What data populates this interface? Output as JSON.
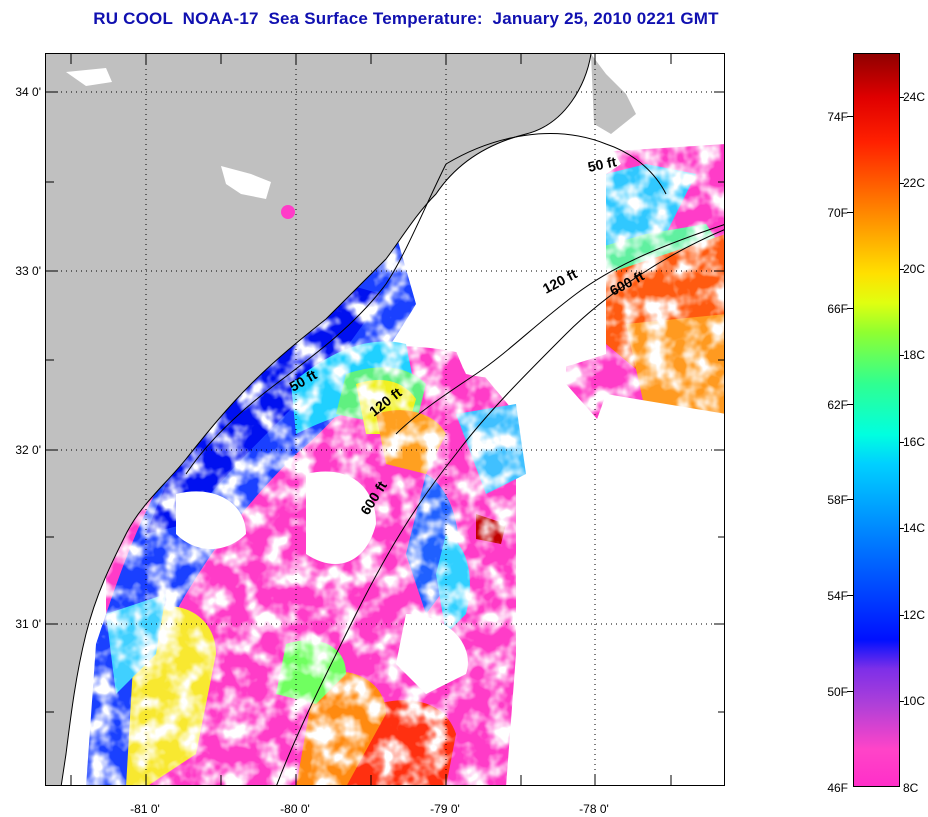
{
  "title": "RU COOL  NOAA-17  Sea Surface Temperature:  January 25, 2010 0221 GMT",
  "map": {
    "latitude_labels": [
      "34 0'",
      "33 0'",
      "32 0'",
      "31 0'"
    ],
    "longitude_labels": [
      "-81 0'",
      "-80 0'",
      "-79 0'",
      "-78 0'"
    ],
    "isobath_labels": [
      "50 ft",
      "120 ft",
      "600 ft",
      "50 ft",
      "120 ft",
      "600 ft"
    ],
    "land_color": "#c0c0c0",
    "cloud_color": "#ffffff"
  },
  "colorbar": {
    "fahrenheit_labels": [
      "74F",
      "70F",
      "66F",
      "62F",
      "58F",
      "54F",
      "50F",
      "46F"
    ],
    "celsius_labels": [
      "24C",
      "22C",
      "20C",
      "18C",
      "16C",
      "14C",
      "12C",
      "10C",
      "8C"
    ]
  }
}
